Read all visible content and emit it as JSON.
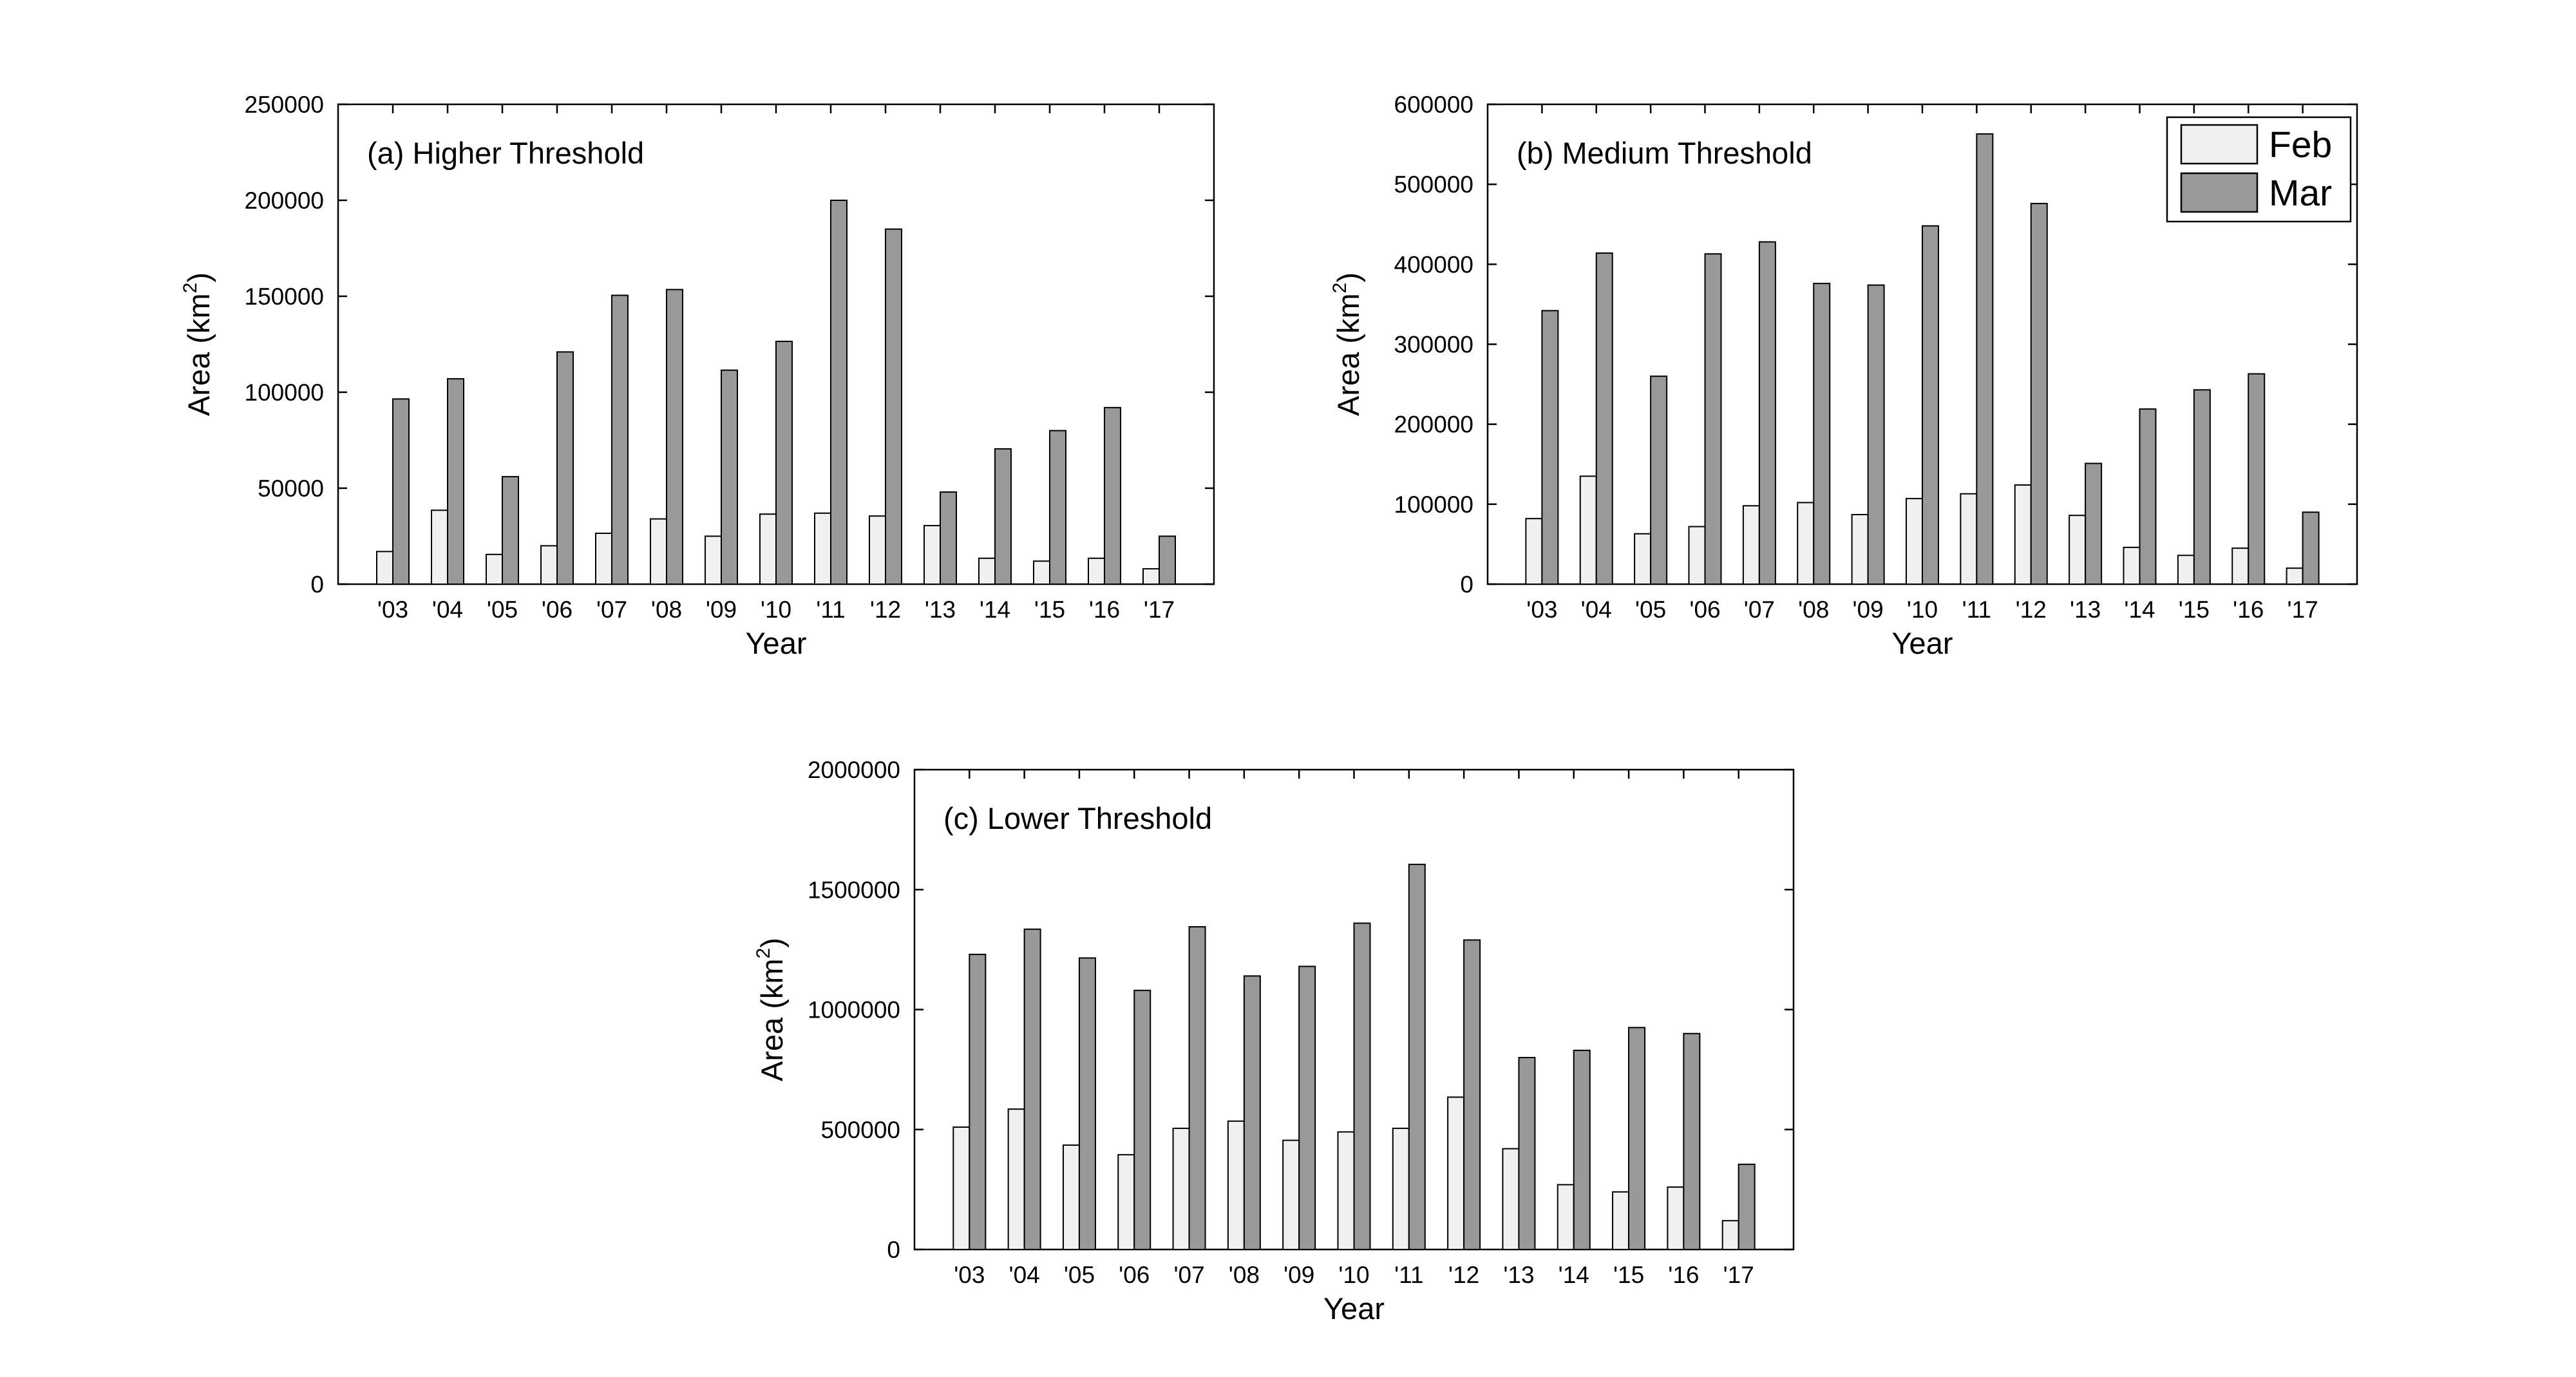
{
  "figure": {
    "legend": {
      "position": "top-right of panel (b)",
      "entries": [
        {
          "label": "Feb",
          "color": "#f0f0f0"
        },
        {
          "label": "Mar",
          "color": "#999999"
        }
      ]
    }
  },
  "chart_data": [
    {
      "type": "bar",
      "title": "(a) Higher Threshold",
      "xlabel": "Year",
      "ylabel": "Area (km",
      "ylabel_sup": "2",
      "ylabel_end": ")",
      "ylim": [
        0,
        250000
      ],
      "yticks": [
        "0",
        "50000",
        "100000",
        "150000",
        "200000",
        "250000"
      ],
      "categories": [
        "'03",
        "'04",
        "'05",
        "'06",
        "'07",
        "'08",
        "'09",
        "'10",
        "'11",
        "'12",
        "'13",
        "'14",
        "'15",
        "'16",
        "'17"
      ],
      "grid": false,
      "series": [
        {
          "name": "Feb",
          "color": "#f0f0f0",
          "values": [
            17000,
            38500,
            15500,
            20000,
            26500,
            34000,
            25000,
            36500,
            37000,
            35500,
            30500,
            13500,
            12000,
            13500,
            8000
          ]
        },
        {
          "name": "Mar",
          "color": "#999999",
          "values": [
            96500,
            107000,
            56000,
            121000,
            150500,
            153500,
            111500,
            126500,
            200000,
            185000,
            48000,
            70500,
            80000,
            92000,
            25000
          ]
        }
      ]
    },
    {
      "type": "bar",
      "title": "(b) Medium Threshold",
      "xlabel": "Year",
      "ylabel": "Area (km",
      "ylabel_sup": "2",
      "ylabel_end": ")",
      "ylim": [
        0,
        600000
      ],
      "yticks": [
        "0",
        "100000",
        "200000",
        "300000",
        "400000",
        "500000",
        "600000"
      ],
      "categories": [
        "'03",
        "'04",
        "'05",
        "'06",
        "'07",
        "'08",
        "'09",
        "'10",
        "'11",
        "'12",
        "'13",
        "'14",
        "'15",
        "'16",
        "'17"
      ],
      "grid": false,
      "series": [
        {
          "name": "Feb",
          "color": "#f0f0f0",
          "values": [
            82000,
            135000,
            63000,
            72000,
            98000,
            102000,
            87000,
            107000,
            113000,
            124000,
            86000,
            46000,
            36000,
            45000,
            20000
          ]
        },
        {
          "name": "Mar",
          "color": "#999999",
          "values": [
            342000,
            414000,
            260000,
            413000,
            428000,
            376000,
            374000,
            448000,
            563000,
            476000,
            151000,
            219000,
            243000,
            263000,
            90000
          ]
        }
      ]
    },
    {
      "type": "bar",
      "title": "(c) Lower Threshold",
      "xlabel": "Year",
      "ylabel": "Area (km",
      "ylabel_sup": "2",
      "ylabel_end": ")",
      "ylim": [
        0,
        2000000
      ],
      "yticks": [
        "0",
        "500000",
        "1000000",
        "1500000",
        "2000000"
      ],
      "categories": [
        "'03",
        "'04",
        "'05",
        "'06",
        "'07",
        "'08",
        "'09",
        "'10",
        "'11",
        "'12",
        "'13",
        "'14",
        "'15",
        "'16",
        "'17"
      ],
      "grid": false,
      "series": [
        {
          "name": "Feb",
          "color": "#f0f0f0",
          "values": [
            510000,
            585000,
            435000,
            395000,
            505000,
            535000,
            455000,
            490000,
            505000,
            635000,
            420000,
            270000,
            240000,
            260000,
            120000
          ]
        },
        {
          "name": "Mar",
          "color": "#999999",
          "values": [
            1230000,
            1335000,
            1215000,
            1080000,
            1345000,
            1140000,
            1180000,
            1360000,
            1605000,
            1290000,
            800000,
            830000,
            925000,
            900000,
            355000
          ]
        }
      ]
    }
  ]
}
